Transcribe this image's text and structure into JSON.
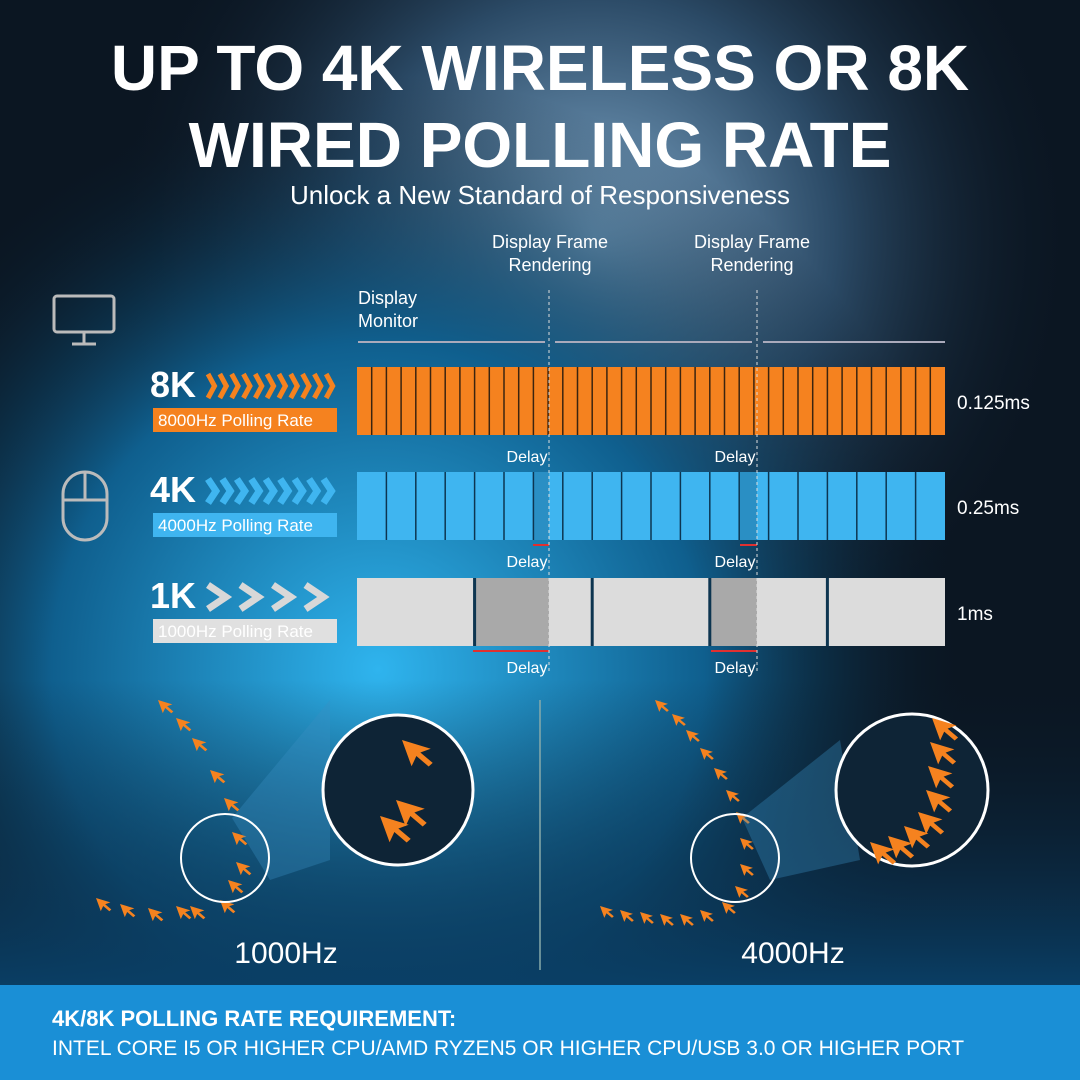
{
  "header": {
    "title_lines": [
      "UP TO 4K WIRELESS OR 8K",
      "WIRED POLLING RATE"
    ],
    "subtitle": "Unlock a New Standard of Responsiveness"
  },
  "timeline": {
    "frame_labels": [
      [
        "Display Frame",
        "Rendering"
      ],
      [
        "Display Frame",
        "Rendering"
      ]
    ],
    "display_label": [
      "Display",
      "Monitor"
    ],
    "rows": [
      {
        "badge": "8K",
        "rate": "8000Hz Polling Rate",
        "interval": "0.125ms",
        "delays": [
          "Delay",
          "Delay"
        ]
      },
      {
        "badge": "4K",
        "rate": "4000Hz Polling Rate",
        "interval": "0.25ms",
        "delays": [
          "Delay",
          "Delay"
        ]
      },
      {
        "badge": "1K",
        "rate": "1000Hz Polling Rate",
        "interval": "1ms",
        "delays": [
          "Delay",
          "Delay"
        ]
      }
    ]
  },
  "comparison": {
    "labels": [
      "1000Hz",
      "4000Hz"
    ]
  },
  "footer": {
    "heading": "4K/8K POLLING RATE REQUIREMENT:",
    "text": "INTEL CORE I5 OR HIGHER CPU/AMD RYZEN5 OR HIGHER CPU/USB 3.0 OR HIGHER PORT"
  }
}
